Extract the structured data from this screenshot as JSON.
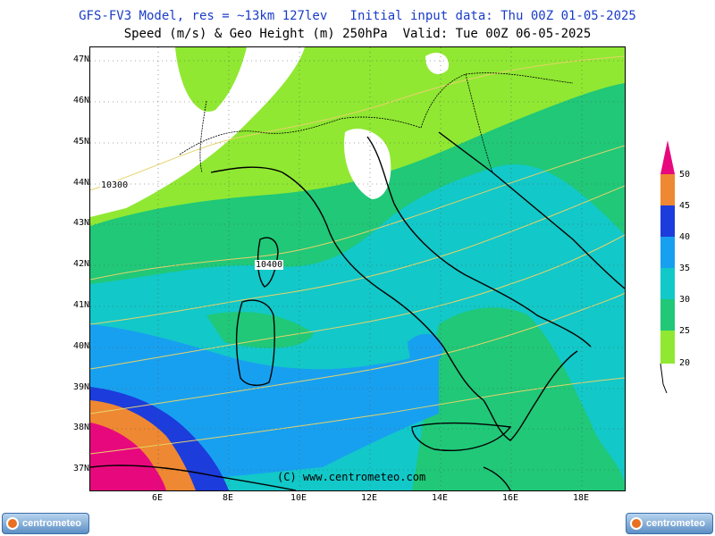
{
  "header": {
    "line1": "GFS-FV3 Model, res = ~13km 127lev   Initial input data: Thu 00Z 01-05-2025",
    "line2": "Speed (m/s) & Geo Height (m) 250hPa  Valid: Tue 00Z 06-05-2025"
  },
  "map": {
    "lat_labels": [
      "47N",
      "46N",
      "45N",
      "44N",
      "43N",
      "42N",
      "41N",
      "40N",
      "39N",
      "38N",
      "37N"
    ],
    "lon_labels": [
      "6E",
      "8E",
      "10E",
      "12E",
      "14E",
      "16E",
      "18E"
    ],
    "contour_labels": [
      "10300",
      "10400"
    ],
    "copyright": "(C) www.centrometeo.com"
  },
  "colorbar": {
    "labels": [
      "50",
      "45",
      "40",
      "35",
      "30",
      "25",
      "20"
    ],
    "colors": [
      "#e8087e",
      "#ee8832",
      "#1c3cdc",
      "#18a0f0",
      "#12c8c8",
      "#20c878",
      "#90e832"
    ]
  },
  "logos": {
    "left": "centrometeo",
    "right": "centrometeo"
  }
}
